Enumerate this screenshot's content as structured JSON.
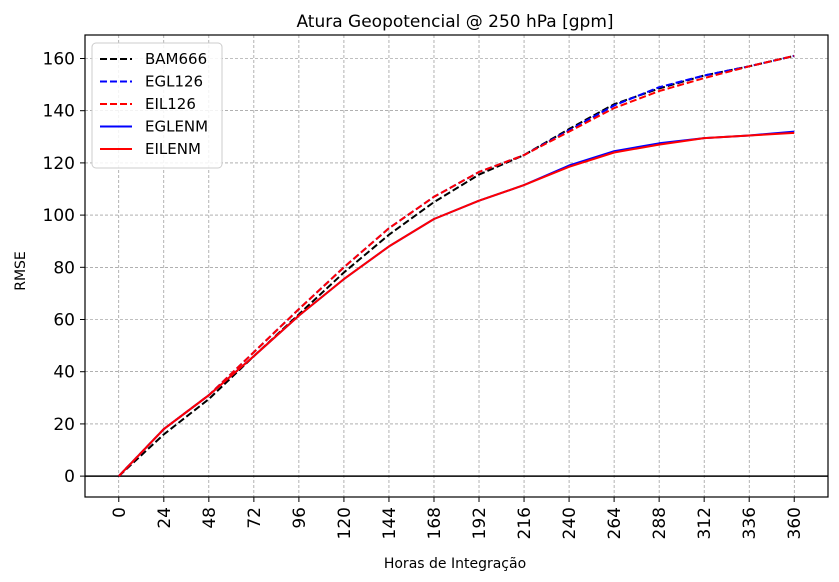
{
  "chart_data": {
    "type": "line",
    "title": "Atura Geopotencial @ 250 hPa [gpm]",
    "xlabel": "Horas de Integração",
    "ylabel": "RMSE",
    "x": [
      0,
      24,
      48,
      72,
      96,
      120,
      144,
      168,
      192,
      216,
      240,
      264,
      288,
      312,
      336,
      360
    ],
    "xticks": [
      "0",
      "24",
      "48",
      "72",
      "96",
      "120",
      "144",
      "168",
      "192",
      "216",
      "240",
      "264",
      "288",
      "312",
      "336",
      "360"
    ],
    "yticks": [
      "0",
      "20",
      "40",
      "60",
      "80",
      "100",
      "120",
      "140",
      "160"
    ],
    "ytick_values": [
      0,
      20,
      40,
      60,
      80,
      100,
      120,
      140,
      160
    ],
    "xlim": [
      -18,
      378
    ],
    "ylim": [
      -8,
      169
    ],
    "grid": true,
    "zero_line": true,
    "legend_position": "top-left",
    "series": [
      {
        "name": "BAM666",
        "color": "#000000",
        "dash": "dashed",
        "values": [
          0,
          16,
          29.5,
          46,
          62,
          78,
          92.5,
          105,
          115.5,
          123,
          133,
          142.5,
          148.5,
          153.5,
          157,
          161
        ]
      },
      {
        "name": "EGL126",
        "color": "#0000ff",
        "dash": "dashed",
        "values": [
          0,
          18,
          31,
          47.5,
          64,
          80,
          95,
          107,
          116.5,
          123,
          132.5,
          142,
          149,
          153.5,
          157,
          161
        ]
      },
      {
        "name": "EIL126",
        "color": "#ff0000",
        "dash": "dashed",
        "values": [
          0,
          18,
          31,
          47.5,
          64,
          80,
          95,
          107,
          116.5,
          123,
          132,
          141,
          147.5,
          152.5,
          157,
          161
        ]
      },
      {
        "name": "EGLENM",
        "color": "#0000ff",
        "dash": "solid",
        "values": [
          0,
          18,
          31,
          46,
          61.5,
          75.5,
          88,
          98.5,
          105.5,
          111.5,
          119,
          124.5,
          127.5,
          129.5,
          130.5,
          132
        ]
      },
      {
        "name": "EILENM",
        "color": "#ff0000",
        "dash": "solid",
        "values": [
          0,
          18,
          31,
          46,
          61.5,
          75.5,
          88,
          98.5,
          105.5,
          111.5,
          118.5,
          124,
          127,
          129.5,
          130.5,
          131.5
        ]
      }
    ]
  }
}
